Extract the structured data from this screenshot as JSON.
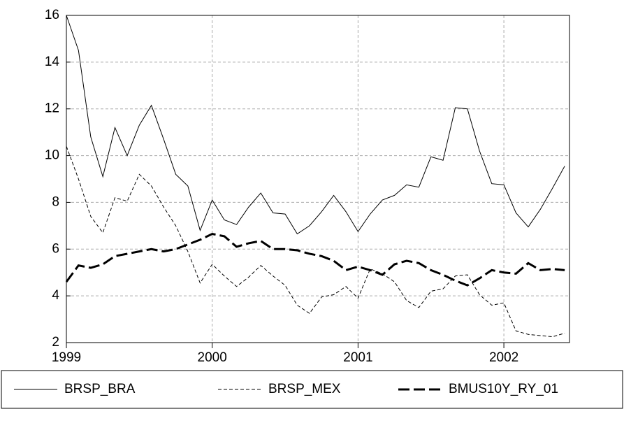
{
  "chart_data": {
    "type": "line",
    "x": [
      1999,
      1999.083,
      1999.167,
      1999.25,
      1999.333,
      1999.417,
      1999.5,
      1999.583,
      1999.667,
      1999.75,
      1999.833,
      1999.917,
      2000,
      2000.083,
      2000.167,
      2000.25,
      2000.333,
      2000.417,
      2000.5,
      2000.583,
      2000.667,
      2000.75,
      2000.833,
      2000.917,
      2001,
      2001.083,
      2001.167,
      2001.25,
      2001.333,
      2001.417,
      2001.5,
      2001.583,
      2001.667,
      2001.75,
      2001.833,
      2001.917,
      2002,
      2002.083,
      2002.167,
      2002.25,
      2002.333,
      2002.417
    ],
    "series": [
      {
        "name": "BRSP_BRA",
        "color": "#000000",
        "dash": "solid",
        "width": 1,
        "values": [
          16,
          14.5,
          10.8,
          9.1,
          11.2,
          10.0,
          11.3,
          12.15,
          10.7,
          9.2,
          8.7,
          6.8,
          8.1,
          7.25,
          7.05,
          7.8,
          8.4,
          7.55,
          7.5,
          6.65,
          7.0,
          7.6,
          8.3,
          7.6,
          6.75,
          7.5,
          8.1,
          8.3,
          8.75,
          8.65,
          9.95,
          9.8,
          12.05,
          12.0,
          10.2,
          8.8,
          8.75,
          7.55,
          6.95,
          7.7,
          8.6,
          9.55
        ]
      },
      {
        "name": "BRSP_MEX",
        "color": "#000000",
        "dash": "dashed",
        "width": 1,
        "values": [
          10.4,
          9.0,
          7.4,
          6.7,
          8.2,
          8.05,
          9.2,
          8.7,
          7.8,
          7.0,
          5.9,
          4.55,
          5.35,
          4.85,
          4.4,
          4.8,
          5.3,
          4.85,
          4.45,
          3.6,
          3.25,
          3.95,
          4.05,
          4.4,
          3.9,
          5.15,
          4.95,
          4.6,
          3.8,
          3.5,
          4.2,
          4.3,
          4.85,
          4.9,
          4.05,
          3.6,
          3.7,
          2.5,
          2.35,
          2.3,
          2.25,
          2.4
        ]
      },
      {
        "name": "BMUS10Y_RY_01",
        "color": "#000000",
        "dash": "long-dash",
        "width": 3,
        "values": [
          4.6,
          5.3,
          5.2,
          5.35,
          5.7,
          5.8,
          5.9,
          6.0,
          5.9,
          6.0,
          6.2,
          6.4,
          6.65,
          6.55,
          6.1,
          6.25,
          6.35,
          6.0,
          6.0,
          5.95,
          5.8,
          5.7,
          5.5,
          5.1,
          5.25,
          5.1,
          4.9,
          5.35,
          5.5,
          5.4,
          5.1,
          4.9,
          4.65,
          4.45,
          4.75,
          5.1,
          5.0,
          4.95,
          5.4,
          5.1,
          5.15,
          5.1
        ]
      }
    ],
    "xlim": [
      1999,
      2002.45
    ],
    "xticks": [
      1999,
      2000,
      2001,
      2002
    ],
    "ylim": [
      2,
      16
    ],
    "yticks": [
      2,
      4,
      6,
      8,
      10,
      12,
      14,
      16
    ],
    "grid": true,
    "legend": "bottom"
  }
}
